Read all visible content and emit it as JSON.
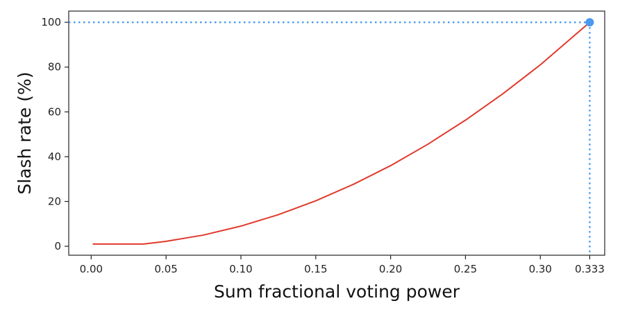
{
  "chart_data": {
    "type": "line",
    "xlabel": "Sum fractional voting power",
    "ylabel": "Slash rate (%)",
    "xlim": [
      -0.015,
      0.343
    ],
    "ylim": [
      -4,
      105
    ],
    "xticks": [
      {
        "value": 0.0,
        "label": "0.00"
      },
      {
        "value": 0.05,
        "label": "0.05"
      },
      {
        "value": 0.1,
        "label": "0.10"
      },
      {
        "value": 0.15,
        "label": "0.15"
      },
      {
        "value": 0.2,
        "label": "0.20"
      },
      {
        "value": 0.25,
        "label": "0.25"
      },
      {
        "value": 0.3,
        "label": "0.30"
      },
      {
        "value": 0.333,
        "label": "0.333"
      }
    ],
    "yticks": [
      {
        "value": 0,
        "label": "0"
      },
      {
        "value": 20,
        "label": "20"
      },
      {
        "value": 40,
        "label": "40"
      },
      {
        "value": 60,
        "label": "60"
      },
      {
        "value": 80,
        "label": "80"
      },
      {
        "value": 100,
        "label": "100"
      }
    ],
    "grid": false,
    "series": [
      {
        "color": "#e0392b",
        "x": [
          0.001,
          0.035,
          0.05,
          0.075,
          0.1,
          0.125,
          0.15,
          0.175,
          0.2,
          0.225,
          0.25,
          0.275,
          0.3,
          0.333
        ],
        "y": [
          1,
          1,
          2.2,
          5.0,
          9.0,
          14.1,
          20.3,
          27.6,
          36.0,
          45.6,
          56.3,
          68.1,
          81.0,
          100
        ]
      }
    ],
    "marker": {
      "x": 0.333,
      "y": 100,
      "color": "#4a9af0"
    },
    "reference_lines": {
      "x": 0.333,
      "y": 100,
      "color": "#4a9af0",
      "style": "dotted"
    }
  }
}
